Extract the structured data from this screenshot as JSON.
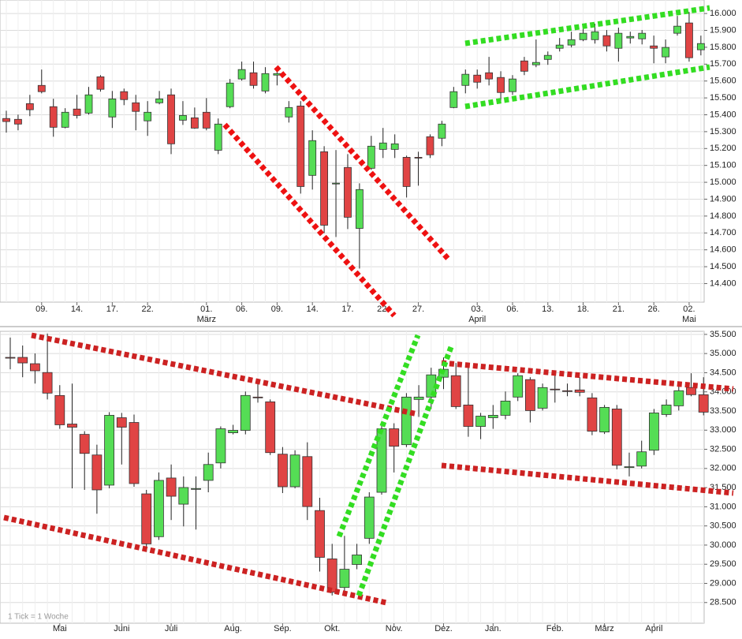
{
  "chart_data": [
    {
      "type": "candlestick",
      "categories": [
        null,
        null,
        null,
        "09.",
        null,
        null,
        "14.",
        null,
        null,
        "17.",
        null,
        null,
        "22.",
        null,
        null,
        null,
        null,
        "01.",
        null,
        null,
        "06.",
        null,
        null,
        "09.",
        null,
        null,
        "14.",
        null,
        null,
        "17.",
        null,
        null,
        "22.",
        null,
        null,
        "27.",
        null,
        null,
        null,
        null,
        "03.",
        null,
        null,
        "06.",
        null,
        null,
        "13.",
        null,
        null,
        "18.",
        null,
        null,
        "21.",
        null,
        null,
        "26.",
        null,
        null,
        "02.",
        null
      ],
      "category_groups": [
        null,
        null,
        null,
        null,
        null,
        null,
        null,
        null,
        null,
        null,
        null,
        null,
        null,
        null,
        null,
        null,
        null,
        "März",
        null,
        null,
        null,
        null,
        null,
        null,
        null,
        null,
        null,
        null,
        null,
        null,
        null,
        null,
        null,
        null,
        null,
        null,
        null,
        null,
        null,
        null,
        "April",
        null,
        null,
        null,
        null,
        null,
        null,
        null,
        null,
        null,
        null,
        null,
        null,
        null,
        null,
        null,
        null,
        null,
        "Mai",
        null
      ],
      "open": [
        15378,
        15373,
        15466,
        15574,
        15448,
        15326,
        15434,
        15410,
        15625,
        15387,
        15537,
        15471,
        15364,
        15471,
        15518,
        15368,
        15382,
        15415,
        15190,
        15448,
        15612,
        15649,
        15541,
        15635,
        15387,
        15452,
        15041,
        15181,
        14990,
        15088,
        14727,
        15083,
        15195,
        15195,
        15148,
        15148,
        15270,
        15261,
        15443,
        15574,
        15635,
        15649,
        15621,
        15537,
        15719,
        15696,
        15728,
        15794,
        15813,
        15845,
        15845,
        15869,
        15794,
        15855,
        15850,
        15808,
        15743,
        15883,
        15944,
        15785
      ],
      "high": [
        15424,
        15401,
        15518,
        15668,
        15495,
        15439,
        15518,
        15565,
        15635,
        15541,
        15555,
        15518,
        15481,
        15541,
        15555,
        15481,
        15443,
        15499,
        15378,
        15612,
        15715,
        15715,
        15682,
        15682,
        15481,
        15481,
        15308,
        15214,
        15191,
        15167,
        14994,
        15275,
        15322,
        15284,
        15158,
        15181,
        15284,
        15364,
        15565,
        15668,
        15668,
        15743,
        15658,
        15635,
        15743,
        15846,
        15775,
        15855,
        15892,
        15930,
        15939,
        15902,
        15916,
        15892,
        15902,
        15869,
        15846,
        15986,
        16009,
        15869
      ],
      "low": [
        15294,
        15308,
        15392,
        15527,
        15270,
        15320,
        15378,
        15401,
        15537,
        15322,
        15457,
        15308,
        15275,
        15462,
        15167,
        15340,
        15317,
        15308,
        15167,
        15439,
        15602,
        15555,
        15527,
        15574,
        15354,
        14933,
        14957,
        14699,
        14676,
        14723,
        14489,
        15074,
        15144,
        15144,
        14910,
        14980,
        15144,
        15214,
        15439,
        15527,
        15555,
        15574,
        15471,
        15518,
        15635,
        15682,
        15696,
        15775,
        15799,
        15836,
        15822,
        15775,
        15715,
        15822,
        15817,
        15705,
        15705,
        15869,
        15715,
        15752
      ],
      "close": [
        15360,
        15345,
        15430,
        15537,
        15326,
        15415,
        15396,
        15518,
        15551,
        15494,
        15490,
        15420,
        15415,
        15494,
        15228,
        15396,
        15321,
        15321,
        15345,
        15588,
        15668,
        15574,
        15644,
        15644,
        15443,
        14975,
        15247,
        14746,
        14995,
        14793,
        14957,
        15214,
        15233,
        15228,
        14975,
        15144,
        15163,
        15345,
        15537,
        15640,
        15593,
        15612,
        15532,
        15612,
        15658,
        15710,
        15752,
        15813,
        15845,
        15883,
        15892,
        15808,
        15883,
        15864,
        15883,
        15794,
        15799,
        15925,
        15738,
        15822
      ],
      "up_color": "#55dd55",
      "down_color": "#e04444",
      "ylim": [
        14290,
        16080
      ],
      "yticks": [
        {
          "value": 14400,
          "label": "14.400"
        },
        {
          "value": 14500,
          "label": "14.500"
        },
        {
          "value": 14600,
          "label": "14.600"
        },
        {
          "value": 14700,
          "label": "14.700"
        },
        {
          "value": 14800,
          "label": "14.800"
        },
        {
          "value": 14900,
          "label": "14.900"
        },
        {
          "value": 15000,
          "label": "15.000"
        },
        {
          "value": 15100,
          "label": "15.100"
        },
        {
          "value": 15200,
          "label": "15.200"
        },
        {
          "value": 15300,
          "label": "15.300"
        },
        {
          "value": 15400,
          "label": "15.400"
        },
        {
          "value": 15500,
          "label": "15.500"
        },
        {
          "value": 15600,
          "label": "15.600"
        },
        {
          "value": 15700,
          "label": "15.700"
        },
        {
          "value": 15800,
          "label": "15.800"
        },
        {
          "value": 15900,
          "label": "15.900"
        },
        {
          "value": 16000,
          "label": "16.000"
        }
      ],
      "grid": true
    },
    {
      "type": "candlestick",
      "categories": [
        null,
        null,
        null,
        null,
        "Mai",
        null,
        null,
        null,
        null,
        "Juni",
        null,
        null,
        null,
        "Juli",
        null,
        null,
        null,
        null,
        "Aug.",
        null,
        null,
        null,
        "Sep.",
        null,
        null,
        null,
        "Okt.",
        null,
        null,
        null,
        null,
        "Nov.",
        null,
        null,
        null,
        "Dez.",
        null,
        null,
        null,
        "Jan.",
        null,
        null,
        null,
        null,
        "Feb.",
        null,
        null,
        null,
        "März",
        null,
        null,
        null,
        "April",
        null,
        null,
        null,
        null
      ],
      "open": [
        34900,
        34900,
        34735,
        34505,
        33905,
        33160,
        32890,
        32352,
        31565,
        33325,
        33201,
        31337,
        30219,
        31751,
        31068,
        31462,
        31689,
        32145,
        32932,
        32994,
        33864,
        33740,
        32373,
        31524,
        32310,
        30902,
        29639,
        28893,
        29494,
        30177,
        31378,
        33036,
        32621,
        33802,
        33864,
        34382,
        34423,
        33657,
        33098,
        33325,
        33388,
        33864,
        34320,
        33574,
        34072,
        34030,
        34050,
        33843,
        32952,
        33553,
        32041,
        32062,
        32476,
        33409,
        33636,
        34112,
        33926
      ],
      "high": [
        35417,
        35210,
        35003,
        35521,
        34175,
        34216,
        32973,
        32621,
        33470,
        33450,
        33408,
        31441,
        31896,
        32104,
        31793,
        31793,
        32414,
        33098,
        33139,
        34009,
        34340,
        33802,
        32559,
        32476,
        32683,
        31234,
        30032,
        30240,
        30032,
        31379,
        33139,
        33180,
        33967,
        34175,
        34630,
        34899,
        34754,
        34692,
        33450,
        33657,
        34009,
        34485,
        34382,
        34216,
        34423,
        34216,
        34382,
        33967,
        33657,
        33657,
        32414,
        32725,
        33553,
        33802,
        34175,
        34485,
        34382
      ],
      "low": [
        34589,
        34382,
        34216,
        33802,
        33035,
        31482,
        31441,
        30819,
        31482,
        32104,
        31524,
        29825,
        30136,
        30654,
        30488,
        30405,
        31379,
        32000,
        32891,
        32891,
        33719,
        32352,
        31358,
        31482,
        30654,
        29308,
        28686,
        28749,
        29370,
        30032,
        31317,
        31896,
        32559,
        33346,
        33553,
        34071,
        33553,
        32828,
        32766,
        33035,
        33284,
        33760,
        33201,
        33512,
        33719,
        33885,
        33885,
        32870,
        32900,
        31979,
        31793,
        32000,
        32352,
        33346,
        33512,
        33885,
        33388
      ],
      "close": [
        34895,
        34755,
        34550,
        33967,
        33140,
        33077,
        32393,
        31441,
        33388,
        33077,
        31606,
        30032,
        31689,
        31275,
        31503,
        31475,
        32104,
        33036,
        32995,
        33906,
        33860,
        32414,
        31524,
        32352,
        31006,
        29680,
        28769,
        29370,
        29742,
        31254,
        33036,
        32580,
        33864,
        33864,
        34444,
        34589,
        33615,
        33098,
        33367,
        33388,
        33760,
        34423,
        33512,
        34112,
        34070,
        34028,
        33988,
        32973,
        33595,
        32083,
        32045,
        32435,
        33450,
        33657,
        34030,
        33926,
        33470
      ],
      "up_color": "#55dd55",
      "down_color": "#e04444",
      "ylim": [
        27960,
        35580
      ],
      "yticks": [
        {
          "value": 28500,
          "label": "28.500"
        },
        {
          "value": 29000,
          "label": "29.000"
        },
        {
          "value": 29500,
          "label": "29.500"
        },
        {
          "value": 30000,
          "label": "30.000"
        },
        {
          "value": 30500,
          "label": "30.500"
        },
        {
          "value": 31000,
          "label": "31.000"
        },
        {
          "value": 31500,
          "label": "31.500"
        },
        {
          "value": 32000,
          "label": "32.000"
        },
        {
          "value": 32500,
          "label": "32.500"
        },
        {
          "value": 33000,
          "label": "33.000"
        },
        {
          "value": 33500,
          "label": "33.500"
        },
        {
          "value": 34000,
          "label": "34.000"
        },
        {
          "value": 34500,
          "label": "34.500"
        },
        {
          "value": 35000,
          "label": "35.000"
        },
        {
          "value": 35500,
          "label": "35.500"
        }
      ],
      "grid": true,
      "note": "1 Tick = 1 Woche"
    }
  ]
}
